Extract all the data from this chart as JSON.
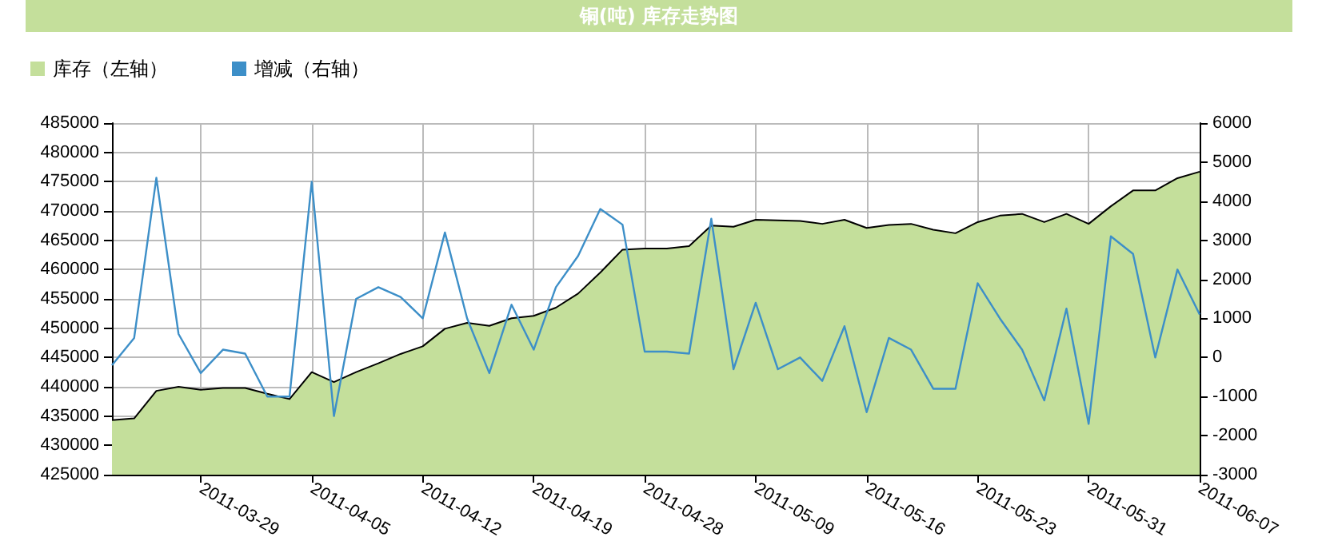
{
  "chart_data": {
    "type": "area",
    "title": "铜(吨) 库存走势图",
    "categories": [
      null,
      null,
      null,
      null,
      "2011-03-29",
      null,
      null,
      null,
      null,
      "2011-04-05",
      null,
      null,
      null,
      null,
      "2011-04-12",
      null,
      null,
      null,
      null,
      "2011-04-19",
      null,
      null,
      null,
      null,
      "2011-04-28",
      null,
      null,
      null,
      null,
      "2011-05-09",
      null,
      null,
      null,
      null,
      "2011-05-16",
      null,
      null,
      null,
      null,
      "2011-05-23",
      null,
      null,
      null,
      null,
      "2011-05-31",
      null,
      null,
      null,
      null,
      "2011-06-07"
    ],
    "series": [
      {
        "name": "库存（左轴）",
        "color": "#c4df9b",
        "values": [
          434300,
          434600,
          439300,
          440000,
          439500,
          439800,
          439800,
          438800,
          437900,
          442500,
          440800,
          442500,
          444000,
          445600,
          446900,
          449900,
          450900,
          450400,
          451700,
          452100,
          453500,
          455900,
          459500,
          463400,
          463600,
          463600,
          464000,
          467500,
          467300,
          468500,
          468400,
          468300,
          467800,
          468500,
          467100,
          467600,
          467800,
          466800,
          466200,
          468100,
          469200,
          469500,
          468100,
          469500,
          467800,
          470800,
          473500,
          473500,
          475600,
          476700
        ]
      },
      {
        "name": "增减（右轴）",
        "type": "line",
        "axis": "y2",
        "color": "#3d8fc8",
        "values": [
          -200,
          500,
          4600,
          600,
          -400,
          200,
          100,
          -1000,
          -1000,
          4500,
          -1500,
          1500,
          1800,
          1550,
          1000,
          3200,
          1000,
          -400,
          1350,
          200,
          1800,
          2600,
          3800,
          3400,
          150,
          150,
          100,
          3550,
          -300,
          1400,
          -300,
          0,
          -600,
          800,
          -1400,
          500,
          200,
          -800,
          -800,
          1900,
          1000,
          200,
          -1100,
          1250,
          -1700,
          3100,
          2650,
          0,
          2250,
          1100
        ]
      }
    ],
    "ylim": [
      425000,
      485000
    ],
    "yticks": [
      425000,
      430000,
      435000,
      440000,
      445000,
      450000,
      455000,
      460000,
      465000,
      470000,
      475000,
      480000,
      485000
    ],
    "y2lim": [
      -3000,
      6000
    ],
    "y2ticks": [
      -3000,
      -2000,
      -1000,
      0,
      1000,
      2000,
      3000,
      4000,
      5000,
      6000
    ],
    "grid": true,
    "legend": "top left",
    "marker": "none",
    "line_style": "solid"
  }
}
